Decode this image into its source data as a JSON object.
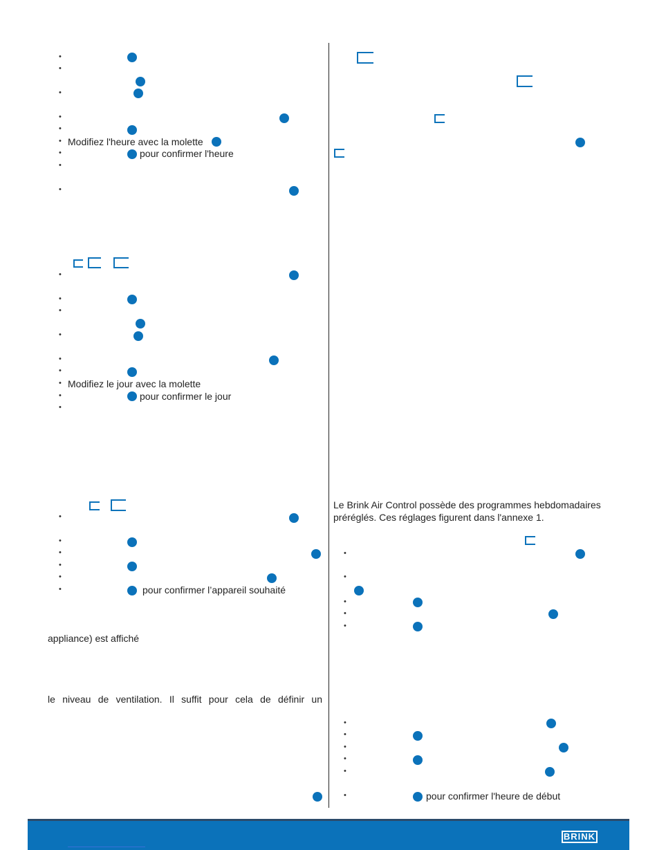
{
  "left_column": {
    "time_section": {
      "line_set_time": "Modifiez l'heure avec la molette",
      "line_confirm_time": "pour confirmer l'heure"
    },
    "day_section": {
      "line_set_day": "Modifiez le jour avec la molette",
      "line_confirm_day": "pour confirmer le jour"
    },
    "appliance_section": {
      "line_confirm_appliance": "pour confirmer l’appareil souhaité"
    },
    "paragraph_appliance": "appliance) est affiché",
    "paragraph_ventilation": "le niveau de ventilation. Il suffit pour cela de définir un"
  },
  "right_column": {
    "paragraph_programs_line1": "Le Brink Air Control possède des programmes hebdomadaires",
    "paragraph_programs_line2": "préréglés. Ces réglages figurent dans l'annexe 1.",
    "line_confirm_start_time": "pour confirmer l'heure de début"
  },
  "footer": {
    "logo_text": "BRINK",
    "accent_color": "#0b72ba"
  },
  "icons": {
    "marker": "filled-circle-marker",
    "bracket": "display-segment-bracket"
  }
}
